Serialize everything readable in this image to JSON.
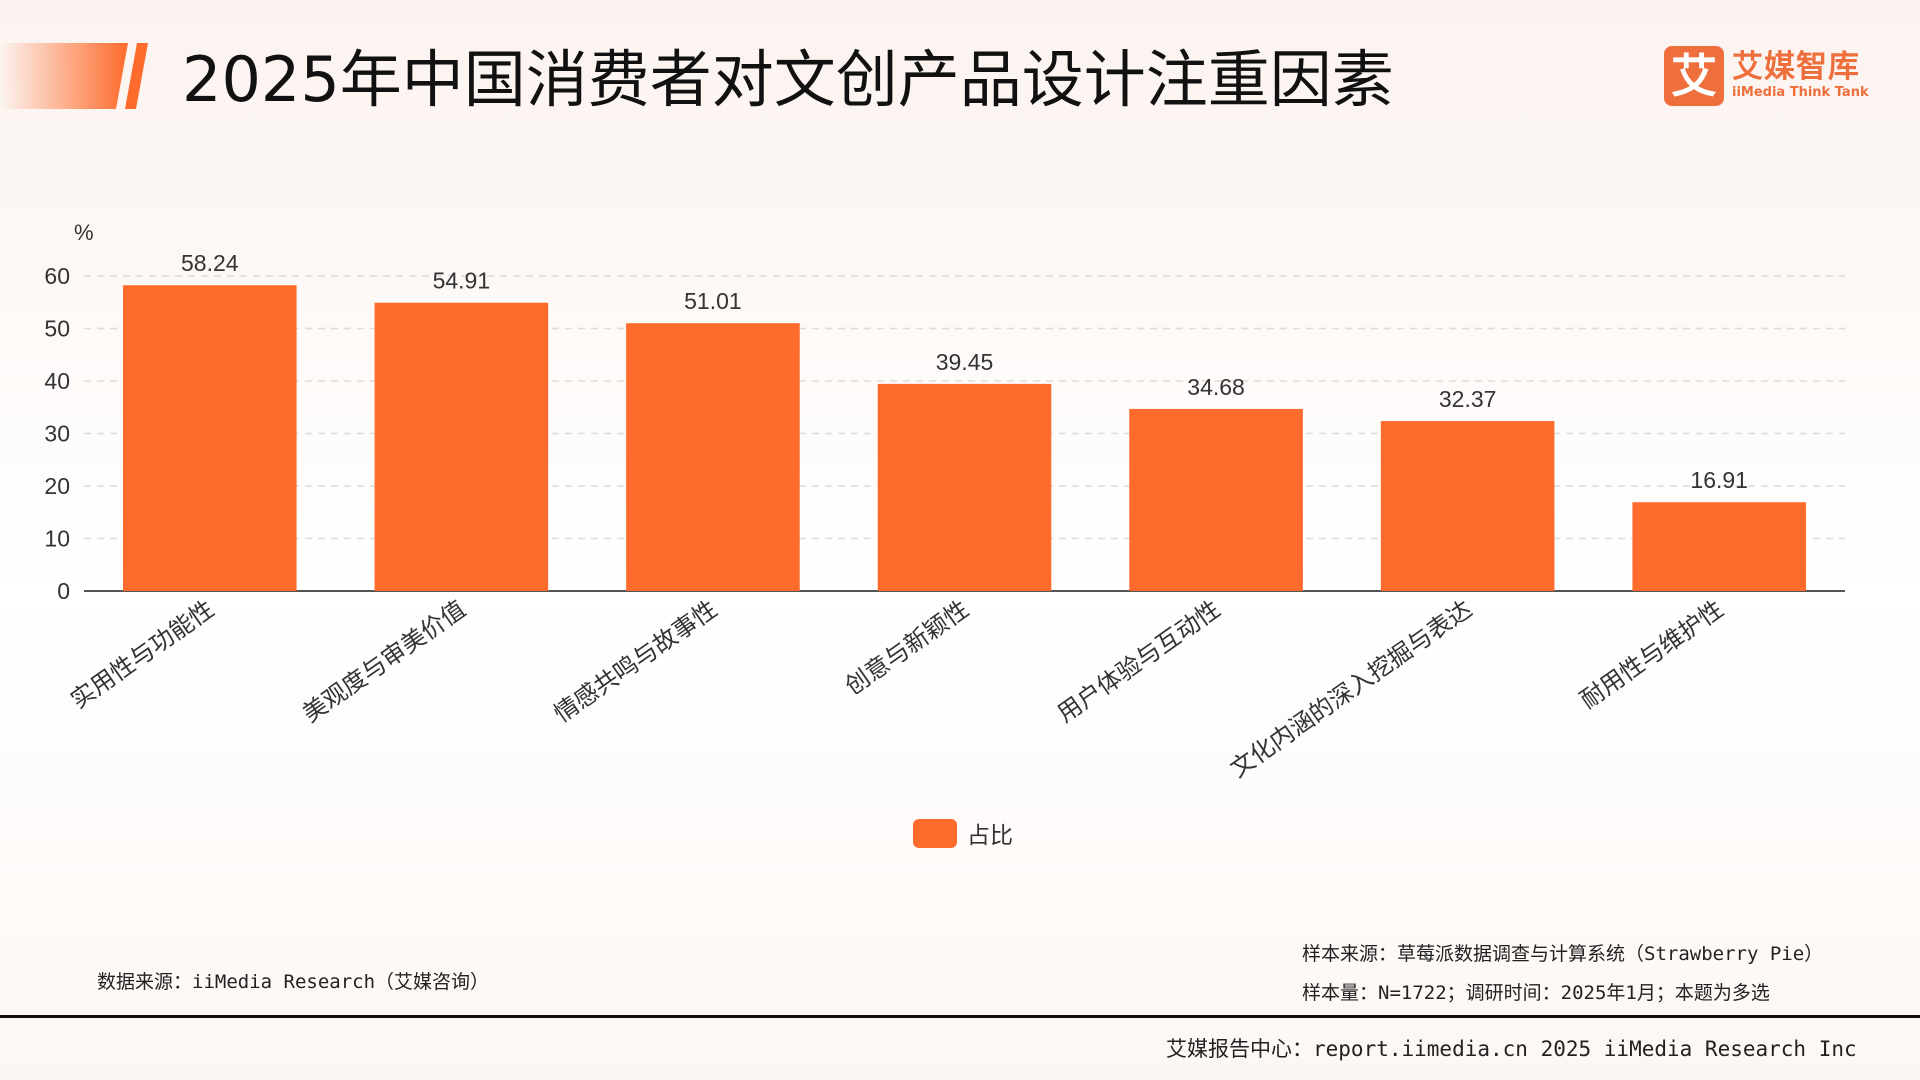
{
  "header": {
    "title": "2025年中国消费者对文创产品设计注重因素"
  },
  "logo": {
    "mark": "艾",
    "name_cn": "艾媒智库",
    "name_en": "iiMedia Think Tank"
  },
  "chart_data": {
    "type": "bar",
    "title": "2025年中国消费者对文创产品设计注重因素",
    "ylabel": "%",
    "ylim": [
      0,
      60
    ],
    "yticks": [
      0,
      10,
      20,
      30,
      40,
      50,
      60
    ],
    "grid": true,
    "legend_position": "bottom",
    "categories": [
      "实用性与功能性",
      "美观度与审美价值",
      "情感共鸣与故事性",
      "创意与新颖性",
      "用户体验与互动性",
      "文化内涵的深入挖掘与表达",
      "耐用性与维护性"
    ],
    "series": [
      {
        "name": "占比",
        "values": [
          58.24,
          54.91,
          51.01,
          39.45,
          34.68,
          32.37,
          16.91
        ],
        "color": "#ff6b2c"
      }
    ]
  },
  "sources": {
    "data_source": "数据来源：iiMedia Research（艾媒咨询）",
    "sample_source": "样本来源：草莓派数据调查与计算系统（Strawberry Pie）",
    "sample_size": "样本量：N=1722；调研时间：2025年1月；本题为多选"
  },
  "footer": {
    "text": "艾媒报告中心：report.iimedia.cn 2025 iiMedia Research Inc"
  }
}
